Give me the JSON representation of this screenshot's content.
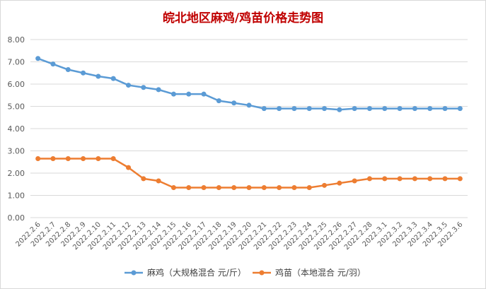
{
  "chart_data": {
    "type": "line",
    "title": "皖北地区麻鸡/鸡苗价格走势图",
    "xlabel": "",
    "ylabel": "",
    "ylim": [
      0,
      8
    ],
    "yticks": [
      "0.00",
      "1.00",
      "2.00",
      "3.00",
      "4.00",
      "5.00",
      "6.00",
      "7.00",
      "8.00"
    ],
    "grid": true,
    "legend_position": "bottom",
    "categories": [
      "2022.2.6",
      "2022.2.7",
      "2022.2.8",
      "2022.2.9",
      "2022.2.10",
      "2022.2.11",
      "2022.2.12",
      "2022.2.13",
      "2022.2.14",
      "2022.2.15",
      "2022.2.16",
      "2022.2.17",
      "2022.2.18",
      "2022.2.19",
      "2022.2.20",
      "2022.2.21",
      "2022.2.22",
      "2022.2.23",
      "2022.2.24",
      "2022.2.25",
      "2022.2.26",
      "2022.2.27",
      "2022.2.28",
      "2022.3.1",
      "2022.3.2",
      "2022.3.3",
      "2022.3.4",
      "2022.3.5",
      "2022.3.6"
    ],
    "series": [
      {
        "name": "麻鸡（大规格混合 元/斤）",
        "color": "#5b9bd5",
        "values": [
          7.15,
          6.9,
          6.65,
          6.5,
          6.35,
          6.25,
          5.95,
          5.85,
          5.75,
          5.55,
          5.55,
          5.55,
          5.25,
          5.15,
          5.05,
          4.9,
          4.9,
          4.9,
          4.9,
          4.9,
          4.85,
          4.9,
          4.9,
          4.9,
          4.9,
          4.9,
          4.9,
          4.9,
          4.9
        ]
      },
      {
        "name": "鸡苗（本地混合 元/羽）",
        "color": "#ed7d31",
        "values": [
          2.65,
          2.65,
          2.65,
          2.65,
          2.65,
          2.65,
          2.25,
          1.75,
          1.65,
          1.35,
          1.35,
          1.35,
          1.35,
          1.35,
          1.35,
          1.35,
          1.35,
          1.35,
          1.35,
          1.45,
          1.55,
          1.65,
          1.75,
          1.75,
          1.75,
          1.75,
          1.75,
          1.75,
          1.75
        ]
      }
    ]
  }
}
